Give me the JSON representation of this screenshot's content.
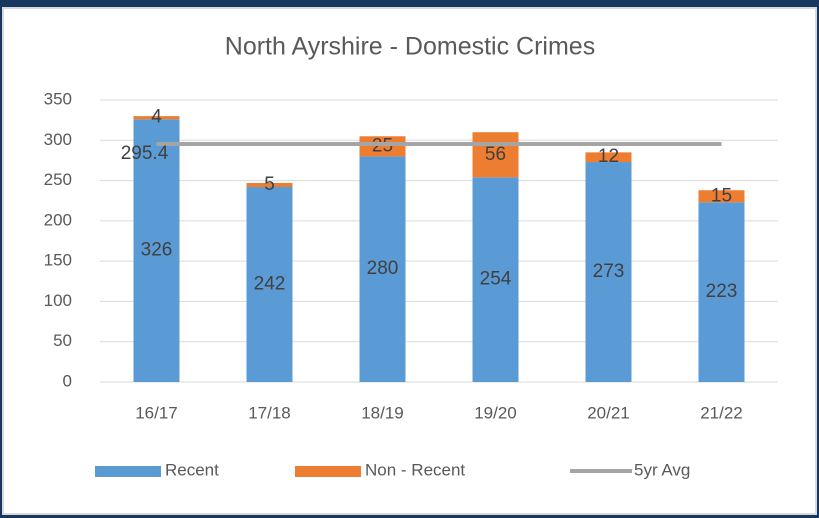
{
  "chart_data": {
    "type": "bar",
    "stacked": true,
    "title": "North  Ayrshire - Domestic Crimes",
    "categories": [
      "16/17",
      "17/18",
      "18/19",
      "19/20",
      "20/21",
      "21/22"
    ],
    "series": [
      {
        "name": "Recent",
        "color": "#5b9bd5",
        "values": [
          326,
          242,
          280,
          254,
          273,
          223
        ]
      },
      {
        "name": "Non - Recent",
        "color": "#ed7d31",
        "values": [
          4,
          5,
          25,
          56,
          12,
          15
        ]
      },
      {
        "name": "5yr Avg",
        "type": "line",
        "color": "#a5a5a5",
        "values": [
          295.4,
          295.4,
          295.4,
          295.4,
          295.4,
          295.4
        ],
        "value_labels": [
          "295.4",
          null,
          null,
          null,
          null,
          null
        ]
      }
    ],
    "ylim": [
      0,
      350
    ],
    "yticks": [
      0,
      50,
      100,
      150,
      200,
      250,
      300,
      350
    ],
    "grid": true,
    "legend": "bottom"
  }
}
